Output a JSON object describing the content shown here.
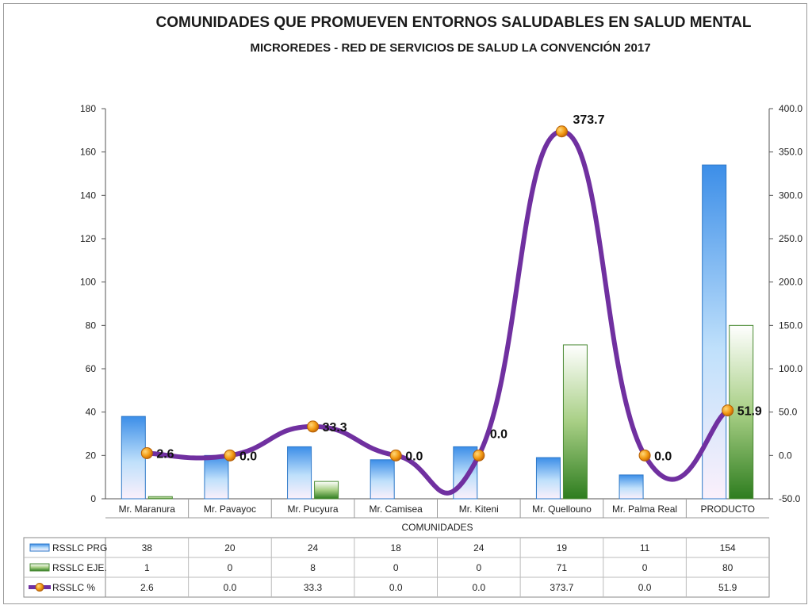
{
  "header": {
    "title": "COMUNIDADES QUE PROMUEVEN ENTORNOS SALUDABLES EN SALUD MENTAL",
    "subtitle": "MICROREDES - RED DE SERVICIOS DE SALUD LA CONVENCIÓN 2017"
  },
  "chart_data": {
    "type": "bar",
    "title": "COMUNIDADES QUE PROMUEVEN ENTORNOS SALUDABLES EN SALUD MENTAL",
    "subtitle": "MICROREDES - RED DE SERVICIOS DE SALUD LA CONVENCIÓN 2017",
    "xlabel": "COMUNIDADES",
    "categories": [
      "Mr. Maranura",
      "Mr. Pavayoc",
      "Mr. Pucyura",
      "Mr. Camisea",
      "Mr. Kiteni",
      "Mr. Quellouno",
      "Mr. Palma Real",
      "PRODUCTO"
    ],
    "series": [
      {
        "name": "RSSLC PRG",
        "type": "bar",
        "axis": "left",
        "color": "#4a90d9",
        "values": [
          38,
          20,
          24,
          18,
          24,
          19,
          11,
          154
        ]
      },
      {
        "name": "RSSLC EJE.",
        "type": "bar",
        "axis": "left",
        "color": "#3d8b2f",
        "values": [
          1,
          0,
          8,
          0,
          0,
          71,
          0,
          80
        ]
      },
      {
        "name": "RSSLC %",
        "type": "line",
        "axis": "right",
        "color": "#7030a0",
        "marker_color": "#f39c12",
        "values": [
          2.6,
          0.0,
          33.3,
          0.0,
          0.0,
          373.7,
          0.0,
          51.9
        ]
      }
    ],
    "ylim": [
      0,
      180
    ],
    "yticks": [
      0,
      20,
      40,
      60,
      80,
      100,
      120,
      140,
      160,
      180
    ],
    "y2lim": [
      -50.0,
      400.0
    ],
    "y2ticks": [
      "-50.0",
      "0.0",
      "50.0",
      "100.0",
      "150.0",
      "200.0",
      "250.0",
      "300.0",
      "350.0",
      "400.0"
    ],
    "data_labels": [
      "2.6",
      "0.0",
      "33.3",
      "0.0",
      "0.0",
      "373.7",
      "0.0",
      "51.9"
    ],
    "table": {
      "rows": [
        {
          "label": "RSSLC PRG",
          "values": [
            "38",
            "20",
            "24",
            "18",
            "24",
            "19",
            "11",
            "154"
          ]
        },
        {
          "label": "RSSLC EJE.",
          "values": [
            "1",
            "0",
            "8",
            "0",
            "0",
            "71",
            "0",
            "80"
          ]
        },
        {
          "label": "RSSLC %",
          "values": [
            "2.6",
            "0.0",
            "33.3",
            "0.0",
            "0.0",
            "373.7",
            "0.0",
            "51.9"
          ]
        }
      ]
    },
    "grid": false,
    "legend": "data table"
  }
}
